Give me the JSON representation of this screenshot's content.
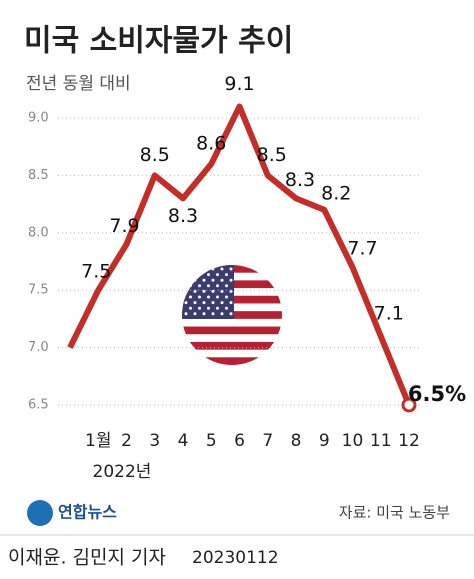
{
  "chart_data": {
    "type": "line",
    "title": "미국 소비자물가 추이",
    "subtitle": "전년 동월 대비",
    "categories": [
      null,
      "1월",
      "2",
      "3",
      "4",
      "5",
      "6",
      "7",
      "8",
      "9",
      "10",
      "11",
      "12"
    ],
    "year_label": "2022년",
    "series": [
      {
        "name": "소비자물가",
        "color": "#c22f2a",
        "values": [
          7.0,
          7.5,
          7.9,
          8.5,
          8.3,
          8.6,
          9.1,
          8.5,
          8.3,
          8.2,
          7.7,
          7.1,
          6.5
        ],
        "value_labels": [
          null,
          "7.5",
          "7.9",
          "8.5",
          "8.3",
          "8.6",
          "9.1",
          "8.5",
          "8.3",
          "8.2",
          "7.7",
          "7.1",
          "6.5%"
        ]
      }
    ],
    "ylim": [
      6.5,
      9.0
    ],
    "yticks": [
      {
        "value": 9,
        "label": "9.0"
      },
      8.5,
      {
        "value": 8,
        "label": "8.0"
      },
      7.5,
      {
        "value": 7,
        "label": "7.0"
      },
      6.5
    ],
    "grid": true,
    "source": "자료: 미국 노동부",
    "logo": "연합뉴스",
    "credit": "이재윤. 김민지 기자",
    "date": "20230112"
  }
}
